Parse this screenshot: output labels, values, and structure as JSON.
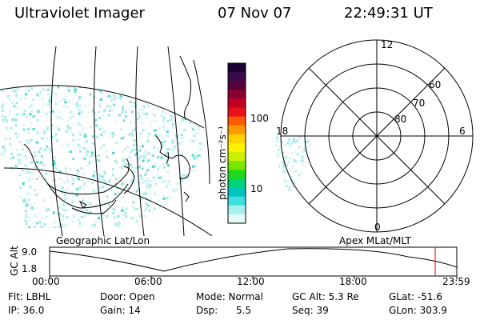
{
  "header": {
    "title": "Ultraviolet Imager",
    "date": "07 Nov 07",
    "time": "22:49:31 UT"
  },
  "colorbar": {
    "unit_label": "photon cm⁻²s⁻¹",
    "tick_100": "100",
    "tick_10": "10",
    "colors_top_to_bottom": [
      "#1a0033",
      "#3a0a4a",
      "#55003a",
      "#8a0030",
      "#c20020",
      "#e8101a",
      "#ff5a00",
      "#ff9900",
      "#ffd200",
      "#fff200",
      "#c8f000",
      "#7ae600",
      "#20d81a",
      "#00d27a",
      "#00c6c0",
      "#40dede",
      "#a6f0f0",
      "#e6fafa"
    ]
  },
  "map_panel": {
    "caption": "Geographic Lat/Lon"
  },
  "polar_panel": {
    "caption": "Apex MLat/MLT",
    "mlt_labels": {
      "top": "12",
      "right": "6",
      "bottom": "0",
      "left": "18"
    },
    "mlat_labels": [
      "60",
      "70",
      "80"
    ]
  },
  "altitude_plot": {
    "ylabel": "GC Alt",
    "ytick_top": "9.0",
    "ytick_bottom": "1.8",
    "xticks": [
      "00:00",
      "06:00",
      "12:00",
      "18:00",
      "23:59"
    ],
    "current_time_marker_color": "#cc0000"
  },
  "footer": {
    "row1": {
      "filter": "Flt: LBHL",
      "door": "Door: Open",
      "mode": "Mode: Normal",
      "gc_alt": "GC Alt: 5.3 Re",
      "glat": "GLat: -51.6"
    },
    "row2": {
      "ip": "IP: 36.0",
      "gain": "Gain: 14",
      "dsp": "Dsp:      5.5",
      "seq": "Seq: 39",
      "glon": "GLon: 303.9"
    }
  }
}
